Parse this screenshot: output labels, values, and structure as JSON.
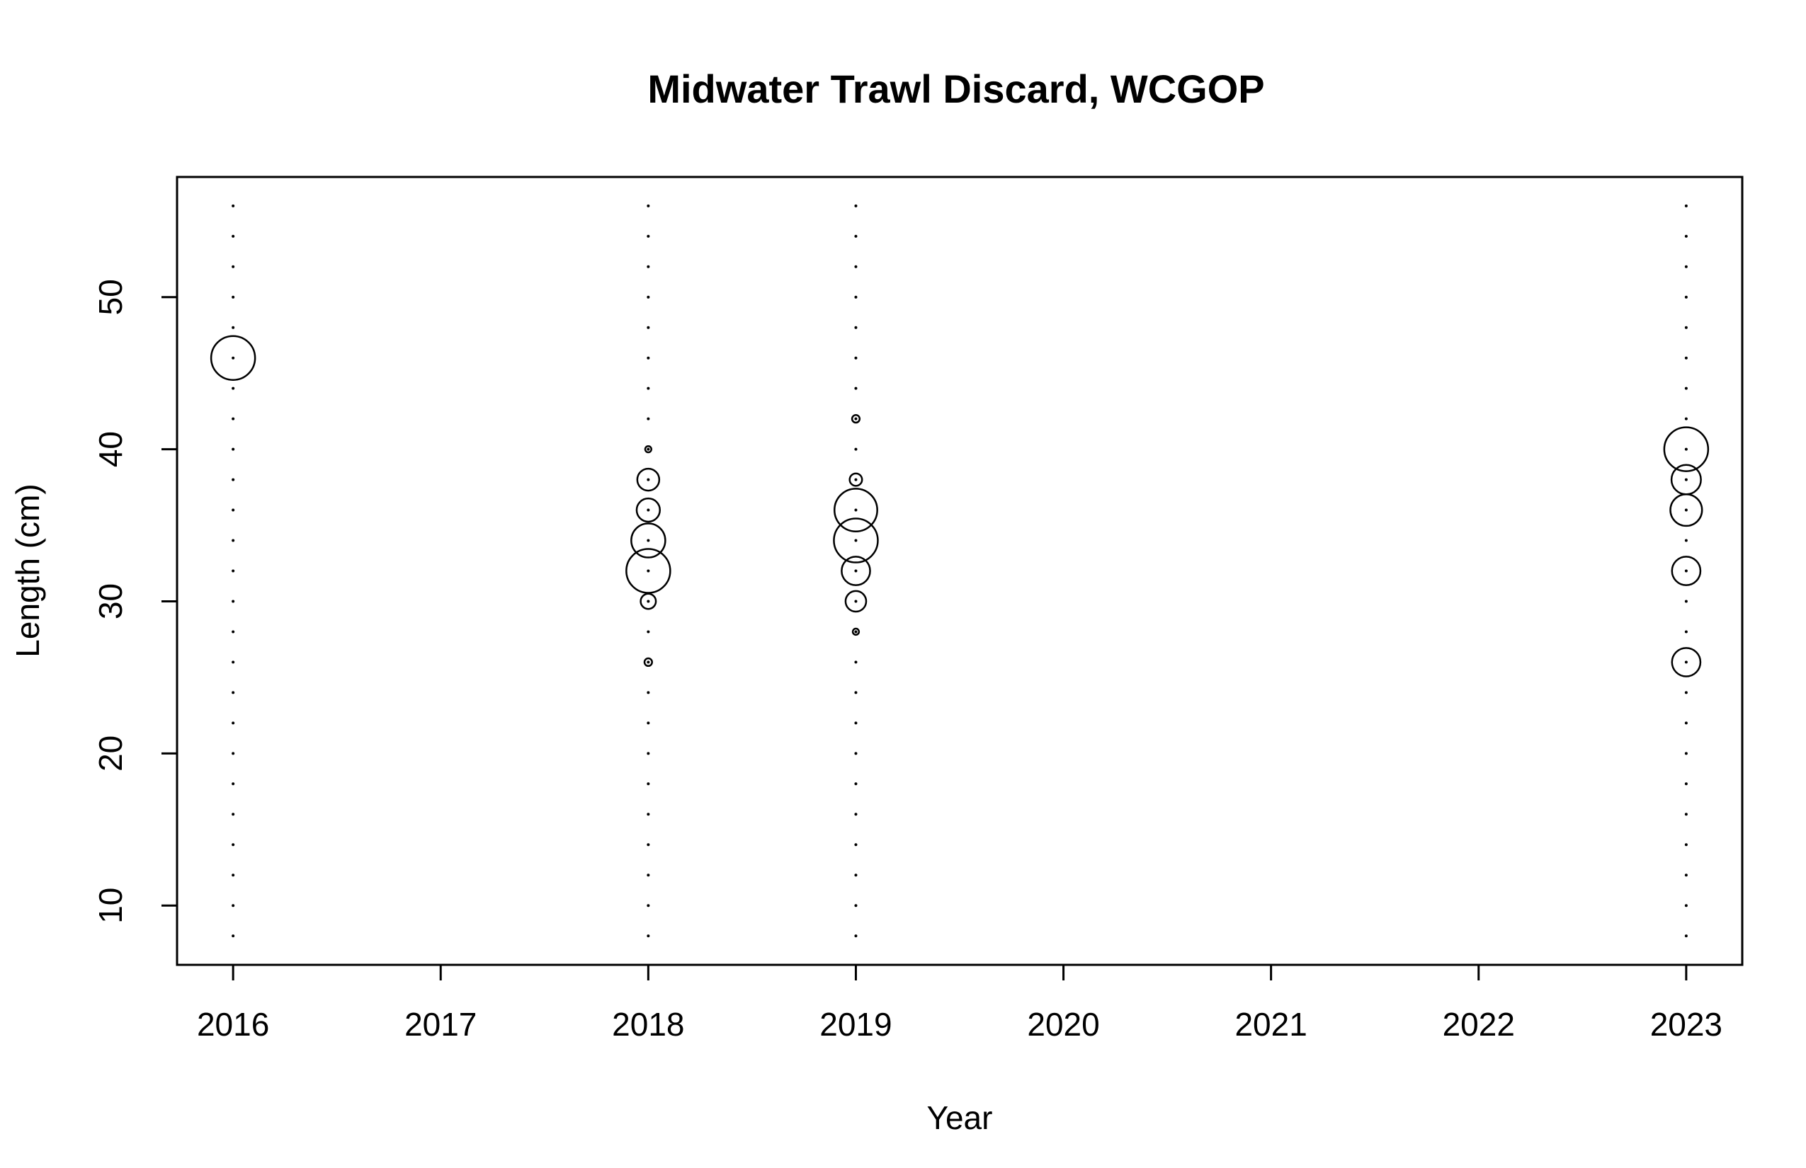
{
  "chart_data": {
    "type": "scatter",
    "subtype": "bubble",
    "title": "Midwater Trawl Discard, WCGOP",
    "xlabel": "Year",
    "ylabel": "Length (cm)",
    "xlim": [
      2015.73,
      2023.27
    ],
    "ylim": [
      6.1,
      57.9
    ],
    "x_ticks": [
      2016,
      2017,
      2018,
      2019,
      2020,
      2021,
      2022,
      2023
    ],
    "y_ticks": [
      10,
      20,
      30,
      40,
      50
    ],
    "grid": false,
    "legend": "none",
    "bin_lengths": [
      8,
      10,
      12,
      14,
      16,
      18,
      20,
      22,
      24,
      26,
      28,
      30,
      32,
      34,
      36,
      38,
      40,
      42,
      44,
      46,
      48,
      50,
      52,
      54,
      56
    ],
    "points": [
      {
        "x": 2016,
        "y": 46,
        "size": 1.0
      },
      {
        "x": 2018,
        "y": 40,
        "size": 0.02
      },
      {
        "x": 2018,
        "y": 38,
        "size": 0.25
      },
      {
        "x": 2018,
        "y": 36,
        "size": 0.28
      },
      {
        "x": 2018,
        "y": 34,
        "size": 0.6
      },
      {
        "x": 2018,
        "y": 32,
        "size": 1.0
      },
      {
        "x": 2018,
        "y": 30,
        "size": 0.12
      },
      {
        "x": 2018,
        "y": 26,
        "size": 0.03
      },
      {
        "x": 2019,
        "y": 42,
        "size": 0.03
      },
      {
        "x": 2019,
        "y": 38,
        "size": 0.08
      },
      {
        "x": 2019,
        "y": 36,
        "size": 0.95
      },
      {
        "x": 2019,
        "y": 34,
        "size": 1.0
      },
      {
        "x": 2019,
        "y": 32,
        "size": 0.42
      },
      {
        "x": 2019,
        "y": 30,
        "size": 0.22
      },
      {
        "x": 2019,
        "y": 28,
        "size": 0.02
      },
      {
        "x": 2023,
        "y": 40,
        "size": 1.0
      },
      {
        "x": 2023,
        "y": 38,
        "size": 0.45
      },
      {
        "x": 2023,
        "y": 36,
        "size": 0.52
      },
      {
        "x": 2023,
        "y": 32,
        "size": 0.42
      },
      {
        "x": 2023,
        "y": 26,
        "size": 0.42
      }
    ]
  }
}
